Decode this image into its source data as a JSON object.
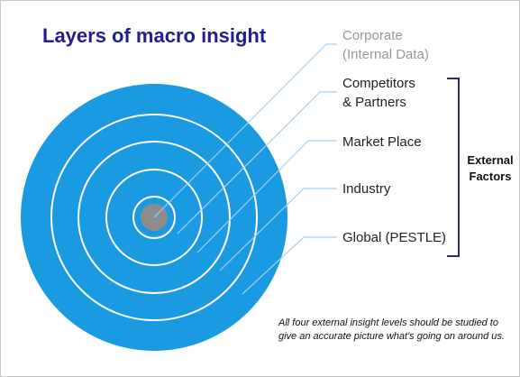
{
  "title": "Layers of macro insight",
  "layers": [
    {
      "id": "corporate",
      "line1": "Corporate",
      "line2": "(Internal Data)"
    },
    {
      "id": "competitors",
      "line1": "Competitors",
      "line2": "& Partners"
    },
    {
      "id": "market",
      "line1": "Market Place",
      "line2": ""
    },
    {
      "id": "industry",
      "line1": "Industry",
      "line2": ""
    },
    {
      "id": "global",
      "line1": "Global (PESTLE)",
      "line2": ""
    }
  ],
  "bracket_label": "External\nFactors",
  "note": "All four external insight levels should be studied to give an accurate picture what's going on around us.",
  "colors": {
    "title": "#1f1f8f",
    "outer_disc": "#1a9ae0",
    "core": "#8c8c8c",
    "ring_lines": "#ffffff",
    "leader_lines": "#a8d0ee",
    "bracket": "#2a2a7a",
    "muted_label": "#999999"
  }
}
